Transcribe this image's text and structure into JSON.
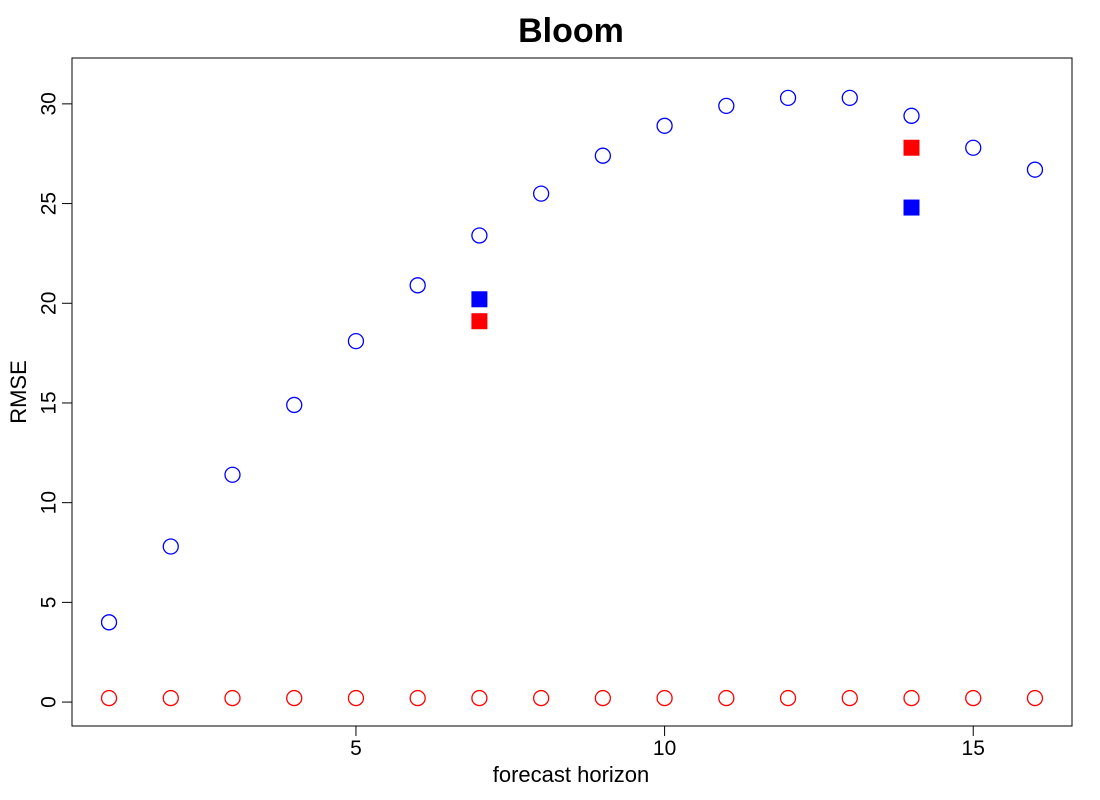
{
  "chart_data": {
    "type": "scatter",
    "title": "Bloom",
    "xlabel": "forecast horizon",
    "ylabel": "RMSE",
    "xlim": [
      0.4,
      16.6
    ],
    "ylim": [
      -1.2,
      32.3
    ],
    "x_ticks": [
      5,
      10,
      15
    ],
    "y_ticks": [
      0,
      5,
      10,
      15,
      20,
      25,
      30
    ],
    "grid": false,
    "legend": null,
    "series": [
      {
        "marker": "open-circle",
        "color": "#0000ff",
        "points": [
          [
            1,
            4.0
          ],
          [
            2,
            7.8
          ],
          [
            3,
            11.4
          ],
          [
            4,
            14.9
          ],
          [
            5,
            18.1
          ],
          [
            6,
            20.9
          ],
          [
            7,
            23.4
          ],
          [
            8,
            25.5
          ],
          [
            9,
            27.4
          ],
          [
            10,
            28.9
          ],
          [
            11,
            29.9
          ],
          [
            12,
            30.3
          ],
          [
            13,
            30.3
          ],
          [
            14,
            29.4
          ],
          [
            15,
            27.8
          ],
          [
            16,
            26.7
          ]
        ]
      },
      {
        "marker": "open-circle",
        "color": "#ff0000",
        "points": [
          [
            1,
            0.2
          ],
          [
            2,
            0.2
          ],
          [
            3,
            0.2
          ],
          [
            4,
            0.2
          ],
          [
            5,
            0.2
          ],
          [
            6,
            0.2
          ],
          [
            7,
            0.2
          ],
          [
            8,
            0.2
          ],
          [
            9,
            0.2
          ],
          [
            10,
            0.2
          ],
          [
            11,
            0.2
          ],
          [
            12,
            0.2
          ],
          [
            13,
            0.2
          ],
          [
            14,
            0.2
          ],
          [
            15,
            0.2
          ],
          [
            16,
            0.2
          ]
        ]
      },
      {
        "marker": "filled-square",
        "color": "#0000ff",
        "points": [
          [
            7,
            20.2
          ],
          [
            14,
            24.8
          ]
        ]
      },
      {
        "marker": "filled-square",
        "color": "#ff0000",
        "points": [
          [
            7,
            19.1
          ],
          [
            14,
            27.8
          ]
        ]
      }
    ]
  }
}
